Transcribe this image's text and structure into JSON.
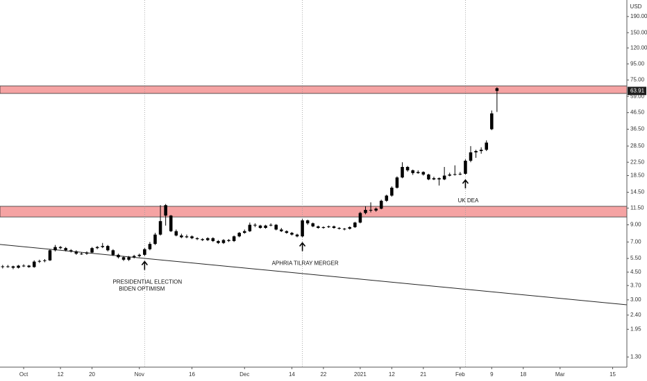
{
  "chart_data": {
    "type": "candlestick",
    "currency": "USD",
    "log_scale": true,
    "grid": false,
    "candle_color": "#000000",
    "x": [
      -4,
      -3,
      -2,
      -1,
      0,
      1,
      2,
      3,
      4,
      5,
      6,
      7,
      8,
      9,
      10,
      11,
      12,
      13,
      14,
      15,
      16,
      17,
      18,
      19,
      20,
      21,
      22,
      23,
      24,
      25,
      26,
      27,
      28,
      29,
      30,
      31,
      32,
      33,
      34,
      35,
      36,
      37,
      38,
      39,
      40,
      41,
      42,
      43,
      44,
      45,
      46,
      47,
      48,
      49,
      50,
      51,
      52,
      53,
      54,
      55,
      56,
      57,
      58,
      59,
      60,
      61,
      62,
      63,
      64,
      65,
      66,
      67,
      68,
      69,
      70,
      71,
      72,
      73,
      74,
      75,
      76,
      77,
      78,
      79,
      80,
      81,
      82,
      83,
      84,
      85,
      86,
      87,
      88,
      89,
      90
    ],
    "open": [
      4.9,
      4.85,
      4.9,
      4.8,
      4.95,
      4.95,
      4.85,
      5.25,
      5.3,
      5.35,
      6.2,
      6.5,
      6.4,
      6.2,
      6.1,
      5.9,
      5.9,
      6.0,
      6.4,
      6.5,
      6.6,
      6.2,
      5.8,
      5.6,
      5.4,
      5.6,
      5.7,
      5.8,
      6.3,
      6.8,
      7.8,
      12.0,
      10.3,
      8.2,
      7.7,
      7.5,
      7.6,
      7.4,
      7.3,
      7.2,
      7.4,
      7.1,
      6.9,
      7.2,
      7.1,
      7.6,
      8.0,
      8.2,
      9.0,
      8.9,
      8.6,
      8.9,
      9.0,
      8.4,
      8.2,
      8.0,
      7.8,
      7.6,
      9.6,
      9.2,
      8.8,
      8.6,
      8.7,
      8.8,
      8.6,
      8.5,
      8.5,
      8.7,
      9.3,
      10.7,
      11.2,
      11.1,
      11.4,
      12.8,
      13.8,
      15.5,
      18.0,
      21.0,
      20.0,
      19.2,
      19.5,
      18.8,
      17.5,
      17.8,
      17.5,
      18.5,
      18.8,
      18.9,
      19.0,
      23,
      26,
      26.5,
      27,
      36.5,
      66.5
    ],
    "high": [
      5.0,
      5.0,
      4.95,
      5.0,
      5.05,
      5.0,
      5.35,
      5.4,
      5.45,
      6.3,
      6.7,
      6.6,
      6.5,
      6.3,
      6.2,
      6.0,
      6.1,
      6.5,
      6.6,
      6.9,
      6.7,
      6.3,
      5.9,
      5.7,
      5.7,
      5.8,
      5.9,
      6.4,
      7.0,
      8.0,
      12.0,
      12.2,
      10.4,
      8.4,
      7.9,
      7.8,
      7.7,
      7.5,
      7.4,
      7.5,
      7.5,
      7.2,
      7.3,
      7.3,
      7.7,
      8.1,
      8.4,
      9.3,
      9.2,
      9.0,
      9.0,
      9.2,
      9.1,
      8.6,
      8.3,
      8.1,
      7.9,
      9.8,
      9.7,
      9.3,
      8.9,
      8.8,
      8.9,
      8.9,
      8.7,
      8.6,
      8.8,
      9.4,
      10.9,
      11.8,
      12.5,
      11.6,
      13.0,
      14.0,
      15.8,
      18.3,
      22.5,
      21.3,
      20.2,
      20.0,
      19.7,
      19.0,
      18.2,
      18.0,
      21.0,
      19.3,
      21.5,
      19.5,
      23.5,
      28.5,
      27.0,
      28.0,
      31.0,
      48.0,
      67.5
    ],
    "low": [
      4.75,
      4.8,
      4.7,
      4.75,
      4.85,
      4.8,
      4.8,
      5.15,
      5.2,
      5.3,
      6.1,
      6.3,
      6.1,
      6.0,
      5.8,
      5.8,
      5.8,
      5.95,
      6.3,
      6.4,
      6.1,
      5.7,
      5.5,
      5.3,
      5.3,
      5.5,
      5.6,
      5.7,
      6.2,
      6.7,
      7.7,
      8.9,
      8.1,
      7.6,
      7.4,
      7.4,
      7.3,
      7.2,
      7.1,
      7.1,
      7.0,
      6.8,
      6.8,
      7.0,
      7.0,
      7.5,
      7.9,
      8.1,
      8.7,
      8.5,
      8.5,
      8.8,
      8.3,
      8.1,
      7.9,
      7.7,
      7.5,
      7.5,
      9.0,
      8.7,
      8.5,
      8.5,
      8.6,
      8.5,
      8.4,
      8.3,
      8.4,
      8.6,
      9.2,
      10.5,
      10.8,
      10.9,
      11.3,
      12.6,
      13.6,
      15.3,
      17.8,
      19.6,
      18.7,
      19.0,
      18.5,
      17.3,
      17.3,
      16.0,
      17.3,
      18.3,
      18.5,
      18.6,
      18.8,
      22.5,
      24.0,
      25.5,
      26.5,
      36.0,
      47.0
    ],
    "close": [
      4.85,
      4.9,
      4.8,
      4.95,
      4.95,
      4.85,
      5.25,
      5.3,
      5.35,
      6.2,
      6.5,
      6.4,
      6.2,
      6.1,
      5.9,
      5.9,
      6.0,
      6.4,
      6.5,
      6.6,
      6.2,
      5.8,
      5.6,
      5.4,
      5.6,
      5.7,
      5.8,
      6.3,
      6.8,
      7.8,
      9.5,
      10.3,
      8.2,
      7.7,
      7.5,
      7.6,
      7.4,
      7.3,
      7.2,
      7.4,
      7.1,
      6.9,
      7.2,
      7.1,
      7.6,
      8.0,
      8.2,
      9.0,
      8.9,
      8.6,
      8.9,
      9.0,
      8.4,
      8.2,
      8.0,
      7.8,
      7.6,
      9.6,
      9.2,
      8.8,
      8.6,
      8.7,
      8.8,
      8.6,
      8.5,
      8.5,
      8.7,
      9.3,
      10.7,
      11.2,
      11.1,
      11.4,
      12.8,
      13.8,
      15.5,
      18.0,
      21.0,
      20.0,
      19.2,
      19.5,
      18.8,
      17.5,
      17.8,
      17.5,
      18.5,
      18.8,
      18.9,
      19.0,
      23,
      26,
      26.5,
      27,
      30,
      46,
      63.91
    ],
    "xlim": [
      -4.5,
      114.7
    ],
    "xticks": [
      {
        "value": 0,
        "label": "Oct"
      },
      {
        "value": 7,
        "label": "12"
      },
      {
        "value": 13,
        "label": "20"
      },
      {
        "value": 22,
        "label": "Nov"
      },
      {
        "value": 32,
        "label": "16"
      },
      {
        "value": 42,
        "label": "Dec"
      },
      {
        "value": 51,
        "label": "14"
      },
      {
        "value": 57,
        "label": "22"
      },
      {
        "value": 64,
        "label": "2021"
      },
      {
        "value": 70,
        "label": "12"
      },
      {
        "value": 76,
        "label": "21"
      },
      {
        "value": 83,
        "label": "Feb"
      },
      {
        "value": 89,
        "label": "9"
      },
      {
        "value": 95,
        "label": "18"
      },
      {
        "value": 102,
        "label": "Mar"
      },
      {
        "value": 112,
        "label": "15"
      }
    ],
    "ylim": [
      1.12,
      242
    ],
    "yticks": [
      {
        "value": 1.3,
        "label": "1.30"
      },
      {
        "value": 1.95,
        "label": "1.95"
      },
      {
        "value": 2.4,
        "label": "2.40"
      },
      {
        "value": 3,
        "label": "3.00"
      },
      {
        "value": 3.7,
        "label": "3.70"
      },
      {
        "value": 4.5,
        "label": "4.50"
      },
      {
        "value": 5.5,
        "label": "5.50"
      },
      {
        "value": 7,
        "label": "7.00"
      },
      {
        "value": 9,
        "label": "9.00"
      },
      {
        "value": 11.5,
        "label": "11.50"
      },
      {
        "value": 14.5,
        "label": "14.50"
      },
      {
        "value": 18.5,
        "label": "18.50"
      },
      {
        "value": 22.5,
        "label": "22.50"
      },
      {
        "value": 28.5,
        "label": "28.50"
      },
      {
        "value": 36.5,
        "label": "36.50"
      },
      {
        "value": 46.5,
        "label": "46.50"
      },
      {
        "value": 59,
        "label": "59.00"
      },
      {
        "value": 75,
        "label": "75.00"
      },
      {
        "value": 95,
        "label": "95.00"
      },
      {
        "value": 120,
        "label": "120.00"
      },
      {
        "value": 150,
        "label": "150.00"
      },
      {
        "value": 190,
        "label": "190.00"
      }
    ],
    "zones": [
      {
        "low": 10.1,
        "high": 11.8,
        "color": "#f5a3a3"
      },
      {
        "low": 61.6,
        "high": 68.8,
        "color": "#f5a3a3"
      }
    ],
    "trendline": {
      "x": [
        -4.5,
        114.7
      ],
      "y": [
        6.75,
        2.79
      ]
    },
    "annotations": [
      {
        "x": 23,
        "text": [
          "PRESIDENTIAL ELECTION",
          "BIDEN OPTIMISM"
        ]
      },
      {
        "x": 53,
        "text": [
          "APHRIA TILRAY MERGER"
        ]
      },
      {
        "x": 84,
        "text": [
          "UK DEA"
        ]
      }
    ]
  }
}
